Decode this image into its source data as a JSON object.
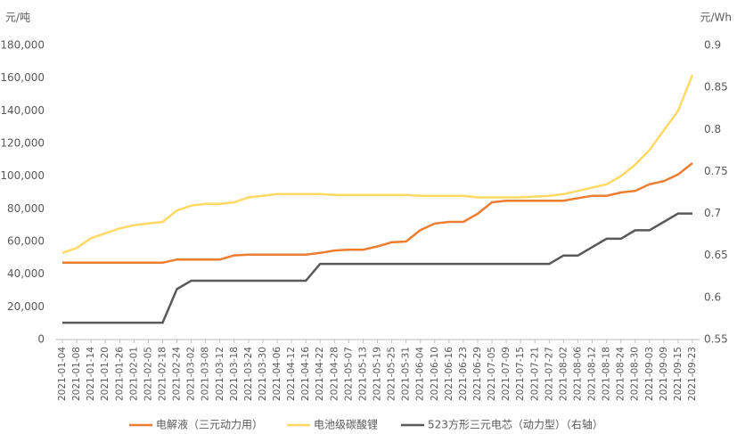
{
  "chart_data": {
    "type": "line",
    "y_label": "元/吨",
    "y2_label": "元/Wh",
    "categories": [
      "2021-01-04",
      "2021-01-08",
      "2021-01-14",
      "2021-01-20",
      "2021-01-26",
      "2021-02-01",
      "2021-02-05",
      "2021-02-18",
      "2021-02-24",
      "2021-03-02",
      "2021-03-08",
      "2021-03-12",
      "2021-03-18",
      "2021-03-24",
      "2021-03-30",
      "2021-04-06",
      "2021-04-12",
      "2021-04-16",
      "2021-04-22",
      "2021-04-28",
      "2021-05-07",
      "2021-05-13",
      "2021-05-19",
      "2021-05-25",
      "2021-05-31",
      "2021-06-04",
      "2021-06-10",
      "2021-06-16",
      "2021-06-23",
      "2021-06-29",
      "2021-07-05",
      "2021-07-09",
      "2021-07-15",
      "2021-07-21",
      "2021-07-27",
      "2021-08-02",
      "2021-08-06",
      "2021-08-12",
      "2021-08-18",
      "2021-08-24",
      "2021-08-30",
      "2021-09-03",
      "2021-09-09",
      "2021-09-15",
      "2021-09-23"
    ],
    "series": [
      {
        "name": "电解液（三元动力用）",
        "color": "#ed7d31",
        "axis": "y",
        "values": [
          47000,
          47000,
          47000,
          47000,
          47000,
          47000,
          47000,
          47000,
          49000,
          49000,
          49000,
          49000,
          51500,
          52000,
          52000,
          52000,
          52000,
          52000,
          53000,
          54500,
          55000,
          55000,
          57000,
          59500,
          60000,
          67000,
          71000,
          72000,
          72000,
          77000,
          84000,
          85000,
          85000,
          85000,
          85000,
          85000,
          86500,
          88000,
          88000,
          90000,
          91000,
          95000,
          97000,
          101000,
          108000
        ]
      },
      {
        "name": "电池级碳酸锂",
        "color": "#ffd966",
        "axis": "y",
        "values": [
          53000,
          56000,
          62000,
          65000,
          68000,
          70000,
          71000,
          72000,
          79000,
          82000,
          83000,
          83000,
          84000,
          87000,
          88000,
          89000,
          89000,
          89000,
          89000,
          88500,
          88500,
          88500,
          88500,
          88500,
          88500,
          88000,
          88000,
          88000,
          88000,
          87000,
          87000,
          87000,
          87000,
          87500,
          88000,
          89000,
          91000,
          93000,
          95000,
          100000,
          107000,
          116000,
          128000,
          140000,
          162000
        ]
      },
      {
        "name": "523方形三元电芯（动力型）（右轴）",
        "color": "#595959",
        "axis": "y2",
        "values": [
          0.57,
          0.57,
          0.57,
          0.57,
          0.57,
          0.57,
          0.57,
          0.57,
          0.61,
          0.62,
          0.62,
          0.62,
          0.62,
          0.62,
          0.62,
          0.62,
          0.62,
          0.62,
          0.64,
          0.64,
          0.64,
          0.64,
          0.64,
          0.64,
          0.64,
          0.64,
          0.64,
          0.64,
          0.64,
          0.64,
          0.64,
          0.64,
          0.64,
          0.64,
          0.64,
          0.65,
          0.65,
          0.66,
          0.67,
          0.67,
          0.68,
          0.68,
          0.69,
          0.7,
          0.7
        ]
      }
    ],
    "ylim": [
      0,
      180000
    ],
    "yticks": [
      0,
      {
        "value": 20000,
        "label": "20,000"
      },
      {
        "value": 40000,
        "label": "40,000"
      },
      {
        "value": 60000,
        "label": "60,000"
      },
      {
        "value": 80000,
        "label": "80,000"
      },
      {
        "value": 100000,
        "label": "100,000"
      },
      {
        "value": 120000,
        "label": "120,000"
      },
      {
        "value": 140000,
        "label": "140,000"
      },
      {
        "value": 160000,
        "label": "160,000"
      },
      {
        "value": 180000,
        "label": "180,000"
      }
    ],
    "y2lim": [
      0.55,
      0.9
    ],
    "y2ticks": [
      0.55,
      0.6,
      0.65,
      0.7,
      0.75,
      0.8,
      0.85,
      0.9
    ],
    "grid": false,
    "legend": "bottom"
  }
}
